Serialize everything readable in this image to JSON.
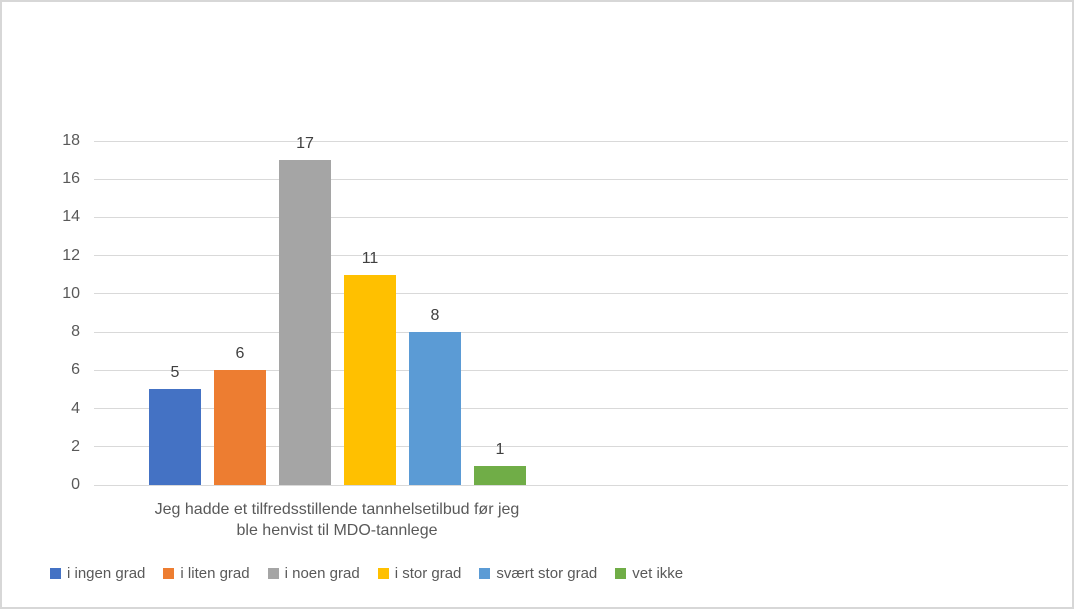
{
  "chart_data": {
    "type": "bar",
    "title": "",
    "categories": [
      "Jeg hadde et tilfredsstillende tannhelsetilbud før jeg ble henvist til MDO-tannlege"
    ],
    "xlabel": "Jeg hadde et tilfredsstillende tannhelsetilbud før jeg ble henvist til MDO-tannlege",
    "xlabel_lines": [
      "Jeg hadde et tilfredsstillende tannhelsetilbud før jeg",
      "ble henvist til MDO-tannlege"
    ],
    "ylabel": "",
    "series": [
      {
        "name": "i ingen grad",
        "color": "#4472C4",
        "values": [
          5
        ]
      },
      {
        "name": "i liten grad",
        "color": "#ED7D31",
        "values": [
          6
        ]
      },
      {
        "name": "i noen grad",
        "color": "#A5A5A5",
        "values": [
          17
        ]
      },
      {
        "name": "i stor grad",
        "color": "#FFC000",
        "values": [
          11
        ]
      },
      {
        "name": "svært stor grad",
        "color": "#5B9BD5",
        "values": [
          8
        ]
      },
      {
        "name": "vet ikke",
        "color": "#70AD47",
        "values": [
          1
        ]
      }
    ],
    "y_axis": {
      "min": 0,
      "max": 18,
      "step": 2,
      "ticks": [
        0,
        2,
        4,
        6,
        8,
        10,
        12,
        14,
        16,
        18
      ]
    },
    "grid": true,
    "data_labels": true,
    "legend_position": "bottom"
  },
  "style": {
    "grid_color": "#D9D9D9",
    "tick_text_color": "#595959",
    "data_label_color": "#404040",
    "axis_label_color": "#595959",
    "legend_text_color": "#595959",
    "frame_border_color": "#D7D7D7",
    "background": "#FFFFFF"
  }
}
